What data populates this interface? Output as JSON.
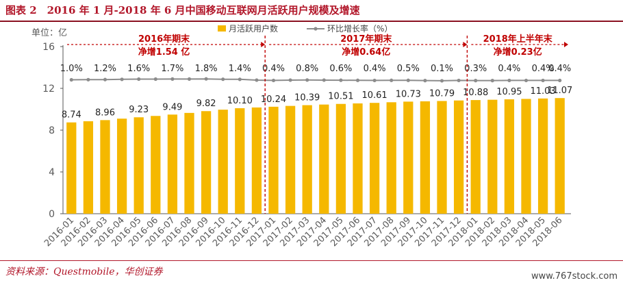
{
  "header": {
    "title": "图表 2　2016 年 1 月-2018 年 6 月中国移动互联网月活跃用户规模及增速"
  },
  "footer": {
    "source": "资料来源：Questmobile，华创证券",
    "watermark": "www.767stock.com"
  },
  "chart_data": {
    "type": "bar",
    "ylabel": "单位：亿",
    "ylim": [
      0,
      16
    ],
    "yticks": [
      0,
      4,
      8,
      12,
      16
    ],
    "grid": false,
    "legend_position": "top-center",
    "categories": [
      "2016-01",
      "2016-02",
      "2016-03",
      "2016-04",
      "2016-05",
      "2016-06",
      "2016-07",
      "2016-08",
      "2016-09",
      "2016-10",
      "2016-11",
      "2016-12",
      "2017-01",
      "2017-02",
      "2017-03",
      "2017-04",
      "2017-05",
      "2017-06",
      "2017-07",
      "2017-08",
      "2017-09",
      "2017-10",
      "2017-11",
      "2017-12",
      "2018-01",
      "2018-02",
      "2018-03",
      "2018-04",
      "2018-05",
      "2018-06"
    ],
    "series": [
      {
        "name": "月活跃用户数",
        "type": "bar",
        "color": "#f5b800",
        "values": [
          8.74,
          8.85,
          8.96,
          9.1,
          9.23,
          9.36,
          9.49,
          9.65,
          9.82,
          9.96,
          10.1,
          10.17,
          10.24,
          10.32,
          10.39,
          10.45,
          10.51,
          10.56,
          10.61,
          10.67,
          10.73,
          10.76,
          10.79,
          10.84,
          10.88,
          10.91,
          10.95,
          10.99,
          11.03,
          11.07
        ],
        "labels": [
          "8.74",
          "",
          "8.96",
          "",
          "9.23",
          "",
          "9.49",
          "",
          "9.82",
          "",
          "10.10",
          "",
          "10.24",
          "",
          "10.39",
          "",
          "10.51",
          "",
          "10.61",
          "",
          "10.73",
          "",
          "10.79",
          "",
          "10.88",
          "",
          "10.95",
          "",
          "11.03",
          "11.07"
        ]
      },
      {
        "name": "环比增长率（%）",
        "type": "line",
        "color": "#8c8c8c",
        "values": [
          1.0,
          1.1,
          1.2,
          1.4,
          1.6,
          1.6,
          1.7,
          1.7,
          1.8,
          1.5,
          1.4,
          0.7,
          0.4,
          0.7,
          0.8,
          0.7,
          0.6,
          0.5,
          0.4,
          0.5,
          0.5,
          0.3,
          0.1,
          0.4,
          0.3,
          0.3,
          0.4,
          0.4,
          0.4,
          0.4
        ],
        "labels": [
          "1.0%",
          "",
          "1.2%",
          "",
          "1.6%",
          "",
          "1.7%",
          "",
          "1.8%",
          "",
          "1.4%",
          "",
          "0.4%",
          "",
          "0.8%",
          "",
          "0.6%",
          "",
          "0.4%",
          "",
          "0.5%",
          "",
          "0.1%",
          "",
          "0.3%",
          "",
          "0.4%",
          "",
          "0.4%",
          "0.4%"
        ]
      }
    ],
    "annotations": [
      {
        "line1": "2016年期末",
        "line2": "净增1.54 亿",
        "from": 0,
        "to": 11
      },
      {
        "line1": "2017年期末",
        "line2": "净增0.64亿",
        "from": 12,
        "to": 23
      },
      {
        "line1": "2018年上半年末",
        "line2": "净增0.23亿",
        "from": 24,
        "to": 29
      }
    ],
    "colors": {
      "bar": "#f5b800",
      "line": "#8c8c8c",
      "annotation": "#c00000",
      "axis": "#555555",
      "tick_text": "#595959"
    }
  }
}
